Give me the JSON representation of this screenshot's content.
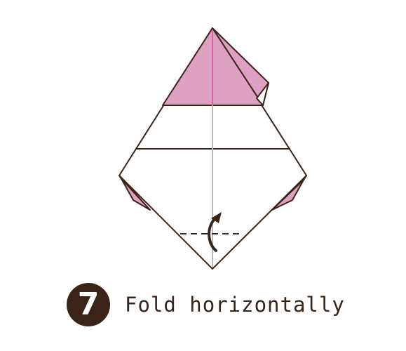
{
  "step": {
    "number": "7",
    "instruction": "Fold horizontally"
  },
  "colors": {
    "paper_colored_side": "#dfa1c3",
    "paper_white_side": "#ffffff",
    "outline": "#3a2418",
    "center_crease_pink": "#e060a8",
    "center_crease_grey": "#b8b8b8",
    "arrow": "#3a2418",
    "badge": "#3a2418"
  },
  "icons": {
    "fold_arrow": "curved-arrow-up-icon",
    "valley_fold_line": "dashed-fold-line"
  }
}
